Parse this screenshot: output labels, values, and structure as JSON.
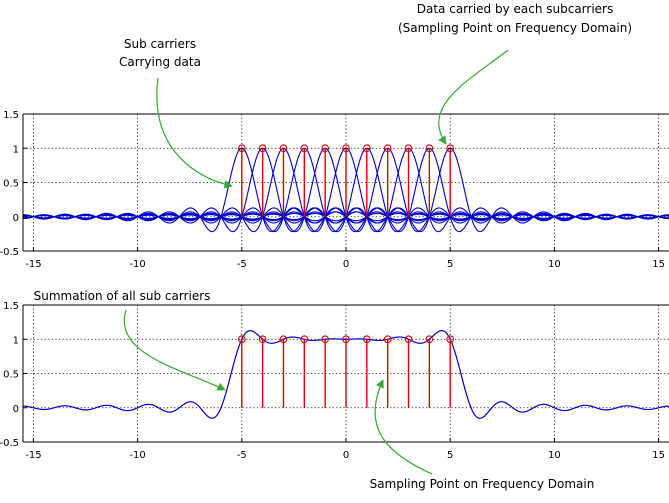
{
  "chart_data": [
    {
      "type": "line",
      "title": "",
      "xlabel": "",
      "ylabel": "",
      "xlim": [
        -15.5,
        15.5
      ],
      "ylim": [
        -0.5,
        1.5
      ],
      "xticks": [
        -15,
        -10,
        -5,
        0,
        5,
        10,
        15
      ],
      "yticks": [
        -0.5,
        0,
        0.5,
        1,
        1.5
      ],
      "xtick_labels": [
        "-15",
        "-10",
        "-5",
        "0",
        "5",
        "10",
        "15"
      ],
      "ytick_labels": [
        "-0.5",
        "0",
        "0.5",
        "1",
        "1.5"
      ],
      "grid": true,
      "series": [
        {
          "curve": "sinc",
          "centers": [
            -5,
            -4,
            -3,
            -2,
            -1,
            0,
            1,
            2,
            3,
            4,
            5
          ],
          "amplitude": 1,
          "color": "#0000cc"
        }
      ],
      "stems": {
        "x": [
          -5,
          -4,
          -3,
          -2,
          -1,
          0,
          1,
          2,
          3,
          4,
          5
        ],
        "y": [
          1,
          1,
          1,
          1,
          1,
          1,
          1,
          1,
          1,
          1,
          1
        ],
        "color": "#dd0000"
      },
      "annotations": [
        {
          "lines": [
            "Sub carriers",
            "Carrying data"
          ],
          "arrow_target": [
            -5.3,
            0.3
          ]
        },
        {
          "lines": [
            "Data carried by each subcarriers",
            "(Sampling Point on Frequency Domain)"
          ],
          "arrow_target": [
            4.8,
            0.98
          ]
        }
      ]
    },
    {
      "type": "line",
      "title": "",
      "xlabel": "",
      "ylabel": "",
      "xlim": [
        -15.5,
        15.5
      ],
      "ylim": [
        -0.5,
        1.5
      ],
      "xticks": [
        -15,
        -10,
        -5,
        0,
        5,
        10,
        15
      ],
      "yticks": [
        -0.5,
        0,
        0.5,
        1,
        1.5
      ],
      "xtick_labels": [
        "-15",
        "-10",
        "-5",
        "0",
        "5",
        "10",
        "15"
      ],
      "ytick_labels": [
        "-0.5",
        "0",
        "0.5",
        "1",
        "1.5"
      ],
      "grid": true,
      "series": [
        {
          "curve": "sum_of_sincs",
          "centers": [
            -5,
            -4,
            -3,
            -2,
            -1,
            0,
            1,
            2,
            3,
            4,
            5
          ],
          "color": "#0000cc"
        }
      ],
      "stems": {
        "x": [
          -5,
          -4,
          -3,
          -2,
          -1,
          0,
          1,
          2,
          3,
          4,
          5
        ],
        "y": [
          1,
          1,
          1,
          1,
          1,
          1,
          1,
          1,
          1,
          1,
          1
        ],
        "color": "#dd0000"
      },
      "annotations": [
        {
          "lines": [
            "Summation of all sub carriers"
          ],
          "arrow_target": [
            -6.1,
            0.12
          ]
        },
        {
          "lines": [
            "Sampling Point on Frequency Domain"
          ],
          "arrow_target": [
            2.0,
            0.22
          ]
        }
      ]
    }
  ]
}
